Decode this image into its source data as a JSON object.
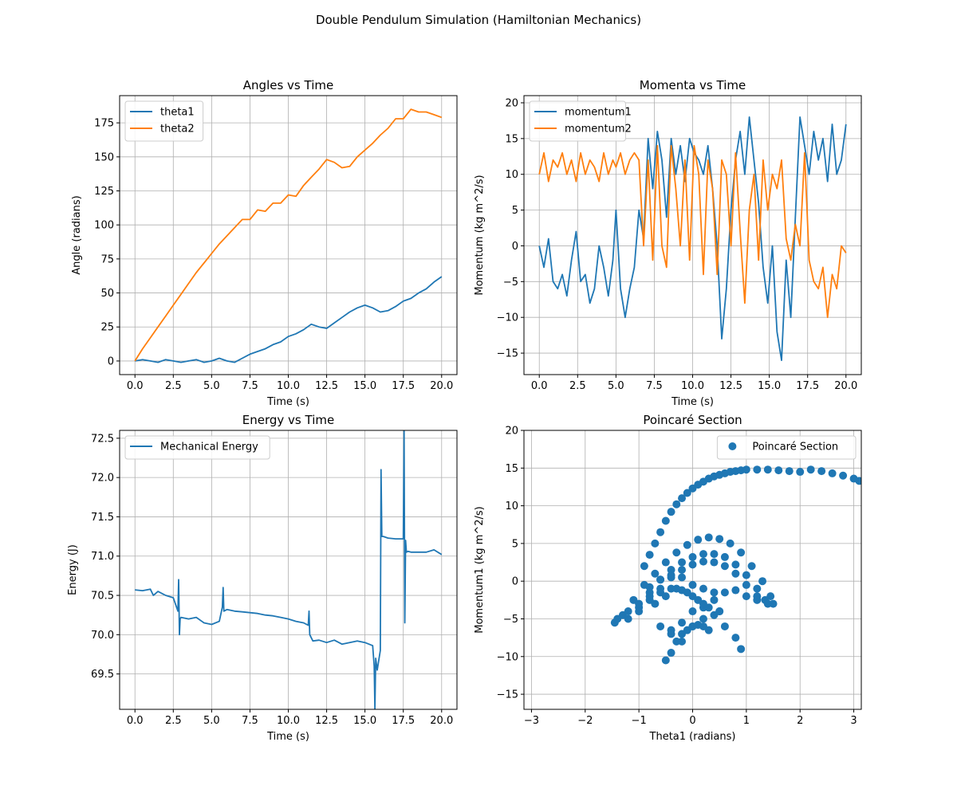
{
  "figure": {
    "suptitle": "Double Pendulum Simulation (Hamiltonian Mechanics)"
  },
  "colors": {
    "series1": "#1f77b4",
    "series2": "#ff7f0e",
    "grid": "#b0b0b0"
  },
  "chart_data": [
    {
      "id": "angles",
      "type": "line",
      "title": "Angles vs Time",
      "xlabel": "Time (s)",
      "ylabel": "Angle (radians)",
      "xlim": [
        -1,
        21
      ],
      "ylim": [
        -10,
        195
      ],
      "xticks": [
        0,
        2.5,
        5,
        7.5,
        10,
        12.5,
        15,
        17.5,
        20
      ],
      "xtick_labels": [
        "0.0",
        "2.5",
        "5.0",
        "7.5",
        "10.0",
        "12.5",
        "15.0",
        "17.5",
        "20.0"
      ],
      "yticks": [
        0,
        25,
        50,
        75,
        100,
        125,
        150,
        175
      ],
      "ytick_labels": [
        "0",
        "25",
        "50",
        "75",
        "100",
        "125",
        "150",
        "175"
      ],
      "grid": true,
      "legend": "top-left",
      "series": [
        {
          "name": "theta1",
          "color": "#1f77b4",
          "x": [
            0,
            0.5,
            1,
            1.5,
            2,
            2.5,
            3,
            3.5,
            4,
            4.5,
            5,
            5.5,
            6,
            6.5,
            7,
            7.5,
            8,
            8.5,
            9,
            9.5,
            10,
            10.5,
            11,
            11.5,
            12,
            12.5,
            13,
            13.5,
            14,
            14.5,
            15,
            15.5,
            16,
            16.5,
            17,
            17.5,
            18,
            18.5,
            19,
            19.5,
            20
          ],
          "y": [
            0,
            1,
            0,
            -1,
            1,
            0,
            -1,
            0,
            1,
            -1,
            0,
            2,
            0,
            -1,
            2,
            5,
            7,
            9,
            12,
            14,
            18,
            20,
            23,
            27,
            25,
            24,
            28,
            32,
            36,
            39,
            41,
            39,
            36,
            37,
            40,
            44,
            46,
            50,
            53,
            58,
            62
          ]
        },
        {
          "name": "theta2",
          "color": "#ff7f0e",
          "x": [
            0,
            0.5,
            1,
            1.5,
            2,
            2.5,
            3,
            3.5,
            4,
            4.5,
            5,
            5.5,
            6,
            6.5,
            7,
            7.5,
            8,
            8.5,
            9,
            9.5,
            10,
            10.5,
            11,
            11.5,
            12,
            12.5,
            13,
            13.5,
            14,
            14.5,
            15,
            15.5,
            16,
            16.5,
            17,
            17.5,
            18,
            18.5,
            19,
            19.5,
            20
          ],
          "y": [
            0,
            9,
            17,
            25,
            33,
            41,
            49,
            57,
            65,
            72,
            79,
            86,
            92,
            98,
            104,
            104,
            111,
            110,
            116,
            116,
            122,
            121,
            129,
            135,
            141,
            148,
            146,
            142,
            143,
            150,
            155,
            160,
            166,
            171,
            178,
            178,
            185,
            183,
            183,
            181,
            179
          ]
        }
      ]
    },
    {
      "id": "momenta",
      "type": "line",
      "title": "Momenta vs Time",
      "xlabel": "Time (s)",
      "ylabel": "Momentum (kg m^2/s)",
      "xlim": [
        -1,
        21
      ],
      "ylim": [
        -18,
        21
      ],
      "xticks": [
        0,
        2.5,
        5,
        7.5,
        10,
        12.5,
        15,
        17.5,
        20
      ],
      "xtick_labels": [
        "0.0",
        "2.5",
        "5.0",
        "7.5",
        "10.0",
        "12.5",
        "15.0",
        "17.5",
        "20.0"
      ],
      "yticks": [
        -15,
        -10,
        -5,
        0,
        5,
        10,
        15,
        20
      ],
      "ytick_labels": [
        "−15",
        "−10",
        "−5",
        "0",
        "5",
        "10",
        "15",
        "20"
      ],
      "grid": true,
      "legend": "top-left",
      "series": [
        {
          "name": "momentum1",
          "color": "#1f77b4",
          "x": [
            0,
            0.3,
            0.6,
            0.9,
            1.2,
            1.5,
            1.8,
            2.1,
            2.4,
            2.7,
            3,
            3.3,
            3.6,
            3.9,
            4.2,
            4.5,
            4.8,
            5,
            5.3,
            5.6,
            5.9,
            6.2,
            6.5,
            6.8,
            7.1,
            7.4,
            7.7,
            8,
            8.3,
            8.6,
            8.9,
            9.2,
            9.5,
            9.8,
            10.1,
            10.4,
            10.7,
            11,
            11.3,
            11.6,
            11.9,
            12.2,
            12.5,
            12.8,
            13.1,
            13.4,
            13.7,
            14,
            14.3,
            14.6,
            14.9,
            15.2,
            15.5,
            15.8,
            16.1,
            16.4,
            16.7,
            17,
            17.3,
            17.6,
            17.9,
            18.2,
            18.5,
            18.8,
            19.1,
            19.4,
            19.7,
            20
          ],
          "y": [
            0,
            -3,
            1,
            -5,
            -6,
            -4,
            -7,
            -2,
            2,
            -5,
            -4,
            -8,
            -6,
            0,
            -3,
            -7,
            -2,
            5,
            -6,
            -10,
            -6,
            -3,
            5,
            1,
            15,
            8,
            16,
            12,
            4,
            15,
            10,
            14,
            9,
            15,
            13,
            12,
            10,
            14,
            8,
            0,
            -13,
            -6,
            5,
            12,
            16,
            10,
            18,
            12,
            6,
            -3,
            -8,
            0,
            -12,
            -16,
            -2,
            -10,
            4,
            18,
            14,
            10,
            16,
            12,
            15,
            9,
            17,
            10,
            12,
            17
          ]
        },
        {
          "name": "momentum2",
          "color": "#ff7f0e",
          "x": [
            0,
            0.3,
            0.6,
            0.9,
            1.2,
            1.5,
            1.8,
            2.1,
            2.4,
            2.7,
            3,
            3.3,
            3.6,
            3.9,
            4.2,
            4.5,
            4.8,
            5,
            5.3,
            5.6,
            5.9,
            6.2,
            6.5,
            6.8,
            7.1,
            7.4,
            7.7,
            8,
            8.3,
            8.6,
            8.9,
            9.2,
            9.5,
            9.8,
            10.1,
            10.4,
            10.7,
            11,
            11.3,
            11.6,
            11.9,
            12.2,
            12.5,
            12.8,
            13.1,
            13.4,
            13.7,
            14,
            14.3,
            14.6,
            14.9,
            15.2,
            15.5,
            15.8,
            16.1,
            16.4,
            16.7,
            17,
            17.3,
            17.6,
            17.9,
            18.2,
            18.5,
            18.8,
            19.1,
            19.4,
            19.7,
            20
          ],
          "y": [
            10,
            13,
            9,
            12,
            11,
            13,
            10,
            12,
            9,
            13,
            10,
            12,
            11,
            9,
            13,
            10,
            12,
            11,
            13,
            10,
            12,
            13,
            12,
            0,
            12,
            -2,
            14,
            0,
            -3,
            14,
            8,
            0,
            12,
            -2,
            14,
            10,
            -4,
            12,
            8,
            -4,
            12,
            10,
            0,
            13,
            2,
            -8,
            5,
            10,
            -2,
            12,
            5,
            10,
            8,
            12,
            1,
            -2,
            3,
            0,
            13,
            -2,
            -5,
            -6,
            -3,
            -10,
            -4,
            -6,
            0,
            -1
          ]
        }
      ]
    },
    {
      "id": "energy",
      "type": "line",
      "title": "Energy vs Time",
      "xlabel": "Time (s)",
      "ylabel": "Energy (J)",
      "xlim": [
        -1,
        21
      ],
      "ylim": [
        69.05,
        72.6
      ],
      "xticks": [
        0,
        2.5,
        5,
        7.5,
        10,
        12.5,
        15,
        17.5,
        20
      ],
      "xtick_labels": [
        "0.0",
        "2.5",
        "5.0",
        "7.5",
        "10.0",
        "12.5",
        "15.0",
        "17.5",
        "20.0"
      ],
      "yticks": [
        69.5,
        70.0,
        70.5,
        71.0,
        71.5,
        72.0,
        72.5
      ],
      "ytick_labels": [
        "69.5",
        "70.0",
        "70.5",
        "71.0",
        "71.5",
        "72.0",
        "72.5"
      ],
      "grid": true,
      "legend": "top-left",
      "series": [
        {
          "name": "Mechanical Energy",
          "color": "#1f77b4",
          "x": [
            0,
            0.5,
            1,
            1.2,
            1.5,
            2,
            2.5,
            2.8,
            2.85,
            2.9,
            2.95,
            3,
            3.5,
            4,
            4.5,
            5,
            5.5,
            5.7,
            5.75,
            5.8,
            6,
            6.5,
            7,
            7.5,
            8,
            8.5,
            9,
            9.5,
            10,
            10.5,
            11,
            11.3,
            11.35,
            11.4,
            11.6,
            12,
            12.5,
            13,
            13.5,
            14,
            14.5,
            15,
            15.5,
            15.6,
            15.65,
            15.7,
            15.8,
            16,
            16.05,
            16.1,
            16.2,
            16.5,
            17,
            17.5,
            17.55,
            17.6,
            17.65,
            17.7,
            17.8,
            18,
            18.5,
            19,
            19.5,
            20
          ],
          "y": [
            70.57,
            70.56,
            70.58,
            70.5,
            70.55,
            70.5,
            70.47,
            70.3,
            70.7,
            70.0,
            70.2,
            70.22,
            70.2,
            70.22,
            70.15,
            70.13,
            70.17,
            70.35,
            70.6,
            70.3,
            70.32,
            70.3,
            70.29,
            70.28,
            70.27,
            70.25,
            70.24,
            70.22,
            70.2,
            70.17,
            70.15,
            70.12,
            70.3,
            70.0,
            69.92,
            69.93,
            69.9,
            69.93,
            69.88,
            69.9,
            69.92,
            69.9,
            69.86,
            69.6,
            69.05,
            69.7,
            69.55,
            69.8,
            72.1,
            71.25,
            71.25,
            71.23,
            71.22,
            71.22,
            72.6,
            70.15,
            71.2,
            71.05,
            71.06,
            71.05,
            71.05,
            71.05,
            71.08,
            71.02
          ]
        }
      ]
    },
    {
      "id": "poincare",
      "type": "scatter",
      "title": "Poincaré Section",
      "xlabel": "Theta1 (radians)",
      "ylabel": "Momentum1 (kg m^2/s)",
      "xlim": [
        -3.14,
        3.14
      ],
      "ylim": [
        -17,
        20
      ],
      "xticks": [
        -3,
        -2,
        -1,
        0,
        1,
        2,
        3
      ],
      "xtick_labels": [
        "−3",
        "−2",
        "−1",
        "0",
        "1",
        "2",
        "3"
      ],
      "yticks": [
        -15,
        -10,
        -5,
        0,
        5,
        10,
        15,
        20
      ],
      "ytick_labels": [
        "−15",
        "−10",
        "−5",
        "0",
        "5",
        "10",
        "15",
        "20"
      ],
      "grid": true,
      "legend": "top-right",
      "series": [
        {
          "name": "Poincaré Section",
          "color": "#1f77b4",
          "x": [
            -0.9,
            -0.8,
            -0.7,
            -0.6,
            -0.5,
            -0.4,
            -0.3,
            -0.2,
            -0.1,
            0.0,
            0.1,
            0.2,
            0.3,
            0.4,
            0.5,
            0.6,
            0.7,
            0.8,
            0.9,
            1.0,
            1.2,
            1.4,
            1.6,
            1.8,
            2.0,
            2.2,
            2.4,
            2.6,
            2.8,
            3.0,
            3.1,
            -1.45,
            -1.3,
            -1.1,
            -0.9,
            -0.7,
            -0.5,
            -0.3,
            -0.1,
            0.1,
            0.3,
            0.5,
            0.7,
            0.9,
            1.1,
            1.3,
            1.45,
            1.5,
            -1.2,
            -1.0,
            -0.8,
            -0.6,
            -0.4,
            -0.2,
            0.0,
            0.2,
            0.4,
            0.6,
            0.8,
            1.0,
            1.2,
            1.35,
            -1.0,
            -0.8,
            -0.6,
            -0.4,
            -0.2,
            0.0,
            0.2,
            0.4,
            0.6,
            0.8,
            1.0,
            1.2,
            -0.6,
            -0.4,
            -0.2,
            0.0,
            0.2,
            0.4,
            0.6,
            0.8,
            0.9,
            -0.5,
            -0.4,
            -0.3,
            -0.2,
            -0.1,
            0.0,
            0.1,
            0.2,
            0.3,
            0.5,
            -1.4,
            -1.2,
            -1.0,
            -0.8,
            -0.6,
            -0.4,
            -0.2,
            0.0,
            0.2,
            0.4,
            0.6,
            0.8,
            1.0,
            1.2,
            1.4,
            -0.8,
            -0.6,
            -0.4,
            -0.2,
            0.0,
            0.2,
            0.4,
            -0.7,
            -0.5,
            -0.3,
            -0.1,
            0.1,
            0.3,
            0.5,
            -0.4,
            -0.2,
            0.0,
            0.2
          ],
          "y": [
            2,
            3.5,
            5,
            6.5,
            8,
            9.2,
            10.2,
            11,
            11.7,
            12.3,
            12.8,
            13.2,
            13.6,
            13.9,
            14.1,
            14.3,
            14.5,
            14.6,
            14.7,
            14.8,
            14.8,
            14.8,
            14.7,
            14.6,
            14.5,
            14.8,
            14.6,
            14.3,
            14.0,
            13.6,
            13.3,
            -5.5,
            -4.5,
            -2.5,
            -0.5,
            1,
            2.5,
            3.8,
            4.8,
            5.5,
            5.8,
            5.6,
            5,
            3.8,
            2,
            0,
            -2,
            -3,
            -5,
            -3.5,
            -1.5,
            0.2,
            1.5,
            2.5,
            3.2,
            3.6,
            3.6,
            3.2,
            2.2,
            0.8,
            -1,
            -2.5,
            -4,
            -2.5,
            -1,
            0.5,
            1.5,
            2.2,
            2.6,
            2.5,
            2,
            1,
            -0.5,
            -2,
            -6,
            -6.5,
            -5.5,
            -4,
            -3.5,
            -4.5,
            -6,
            -7.5,
            -9,
            -10.5,
            -9.5,
            -8,
            -7,
            -6.5,
            -6,
            -5.8,
            -6,
            -6.5,
            -4,
            -5,
            -4,
            -3,
            -2,
            -1.5,
            -1.0,
            -1.2,
            -2,
            -3,
            -2.5,
            -1.5,
            -1.2,
            -2,
            -2.5,
            -3,
            -0.8,
            0.2,
            0.8,
            0.5,
            -0.5,
            -1,
            -1.5,
            -3,
            -2,
            -1,
            -1.5,
            -2.5,
            -3.5,
            -4,
            -7,
            -8,
            -6,
            -5
          ]
        }
      ]
    }
  ]
}
